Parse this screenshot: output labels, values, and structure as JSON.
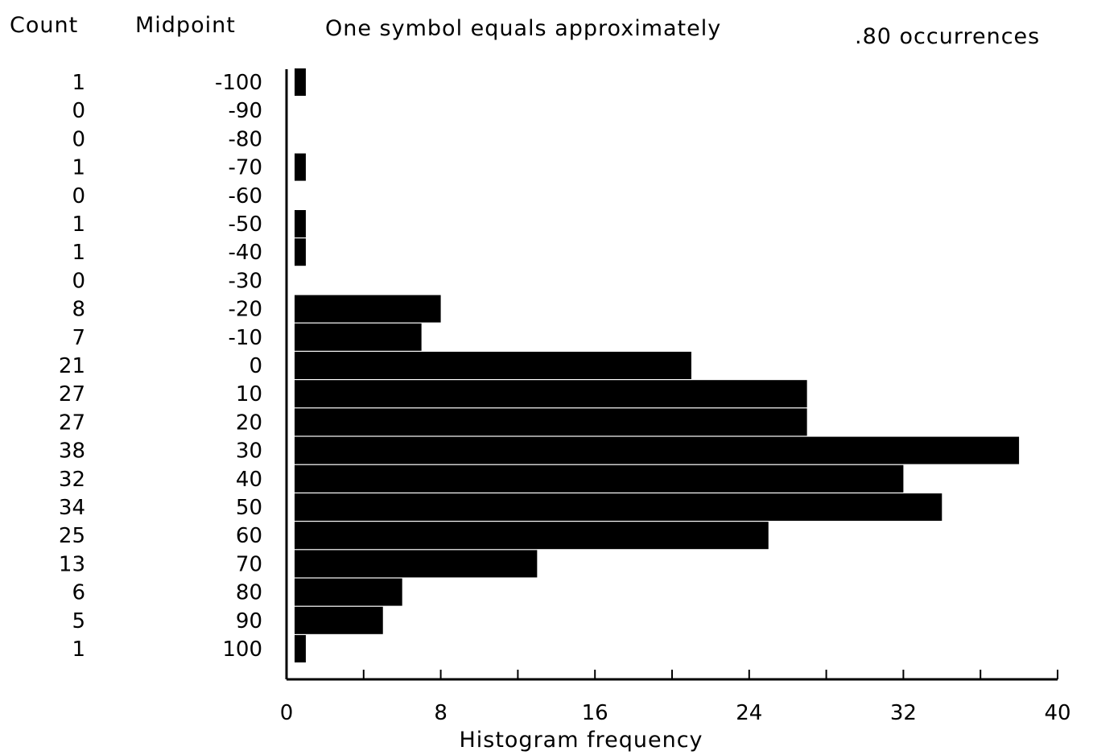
{
  "chart_data": {
    "type": "bar",
    "orientation": "horizontal",
    "header": {
      "count_label": "Count",
      "midpoint_label": "Midpoint",
      "symbol_note": "One symbol equals approximately",
      "symbol_value": ".80 occurrences"
    },
    "midpoints": [
      "-100",
      "-90",
      "-80",
      "-70",
      "-60",
      "-50",
      "-40",
      "-30",
      "-20",
      "-10",
      "0",
      "10",
      "20",
      "30",
      "40",
      "50",
      "60",
      "70",
      "80",
      "90",
      "100"
    ],
    "counts": [
      1,
      0,
      0,
      1,
      0,
      1,
      1,
      0,
      8,
      7,
      21,
      27,
      27,
      38,
      32,
      34,
      25,
      13,
      6,
      5,
      1
    ],
    "xlabel": "Histogram frequency",
    "xlim": [
      0,
      40
    ],
    "xticks": [
      "0",
      "8",
      "16",
      "24",
      "32",
      "40"
    ],
    "grid": false
  },
  "colors": {
    "bar": "#000000",
    "background": "#ffffff",
    "axis": "#000000"
  }
}
